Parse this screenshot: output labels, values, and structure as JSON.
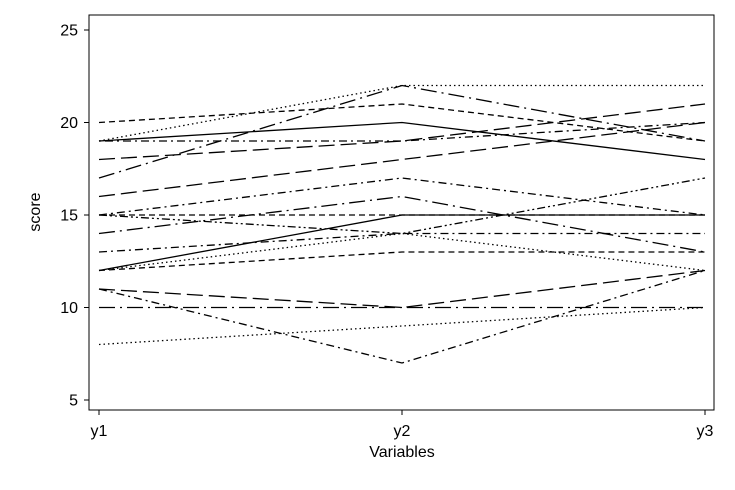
{
  "chart_data": {
    "type": "line",
    "title": "",
    "xlabel": "Variables",
    "ylabel": "score",
    "categories": [
      "y1",
      "y2",
      "y3"
    ],
    "yticks": [
      5,
      10,
      15,
      20,
      25
    ],
    "ylim": [
      4.5,
      25.5
    ],
    "grid": false,
    "legend": "none",
    "series": [
      {
        "values": [
          19,
          20,
          18
        ],
        "dash": "solid"
      },
      {
        "values": [
          12,
          15,
          15
        ],
        "dash": "solid"
      },
      {
        "values": [
          20,
          21,
          19
        ],
        "dash": "dashed"
      },
      {
        "values": [
          19,
          22,
          22
        ],
        "dash": "dotted"
      },
      {
        "values": [
          17,
          22,
          19
        ],
        "dash": "longdash-dot"
      },
      {
        "values": [
          18,
          19,
          21
        ],
        "dash": "longdash"
      },
      {
        "values": [
          19,
          19,
          20
        ],
        "dash": "dot-dash"
      },
      {
        "values": [
          16,
          18,
          20
        ],
        "dash": "longdash"
      },
      {
        "values": [
          15,
          17,
          15
        ],
        "dash": "dash-dot"
      },
      {
        "values": [
          14,
          16,
          13
        ],
        "dash": "longdash-dot"
      },
      {
        "values": [
          15,
          14,
          17
        ],
        "dash": "dash-dot-dot"
      },
      {
        "values": [
          15,
          15,
          15
        ],
        "dash": "dashed"
      },
      {
        "values": [
          13,
          14,
          14
        ],
        "dash": "dash-dot"
      },
      {
        "values": [
          12,
          13,
          13
        ],
        "dash": "dashed"
      },
      {
        "values": [
          12,
          14,
          12
        ],
        "dash": "dotted"
      },
      {
        "values": [
          11,
          10,
          12
        ],
        "dash": "longdash"
      },
      {
        "values": [
          11,
          7,
          12
        ],
        "dash": "dash-dot"
      },
      {
        "values": [
          10,
          10,
          10
        ],
        "dash": "longdash-dot"
      },
      {
        "values": [
          8,
          9,
          10
        ],
        "dash": "dotted"
      }
    ]
  }
}
